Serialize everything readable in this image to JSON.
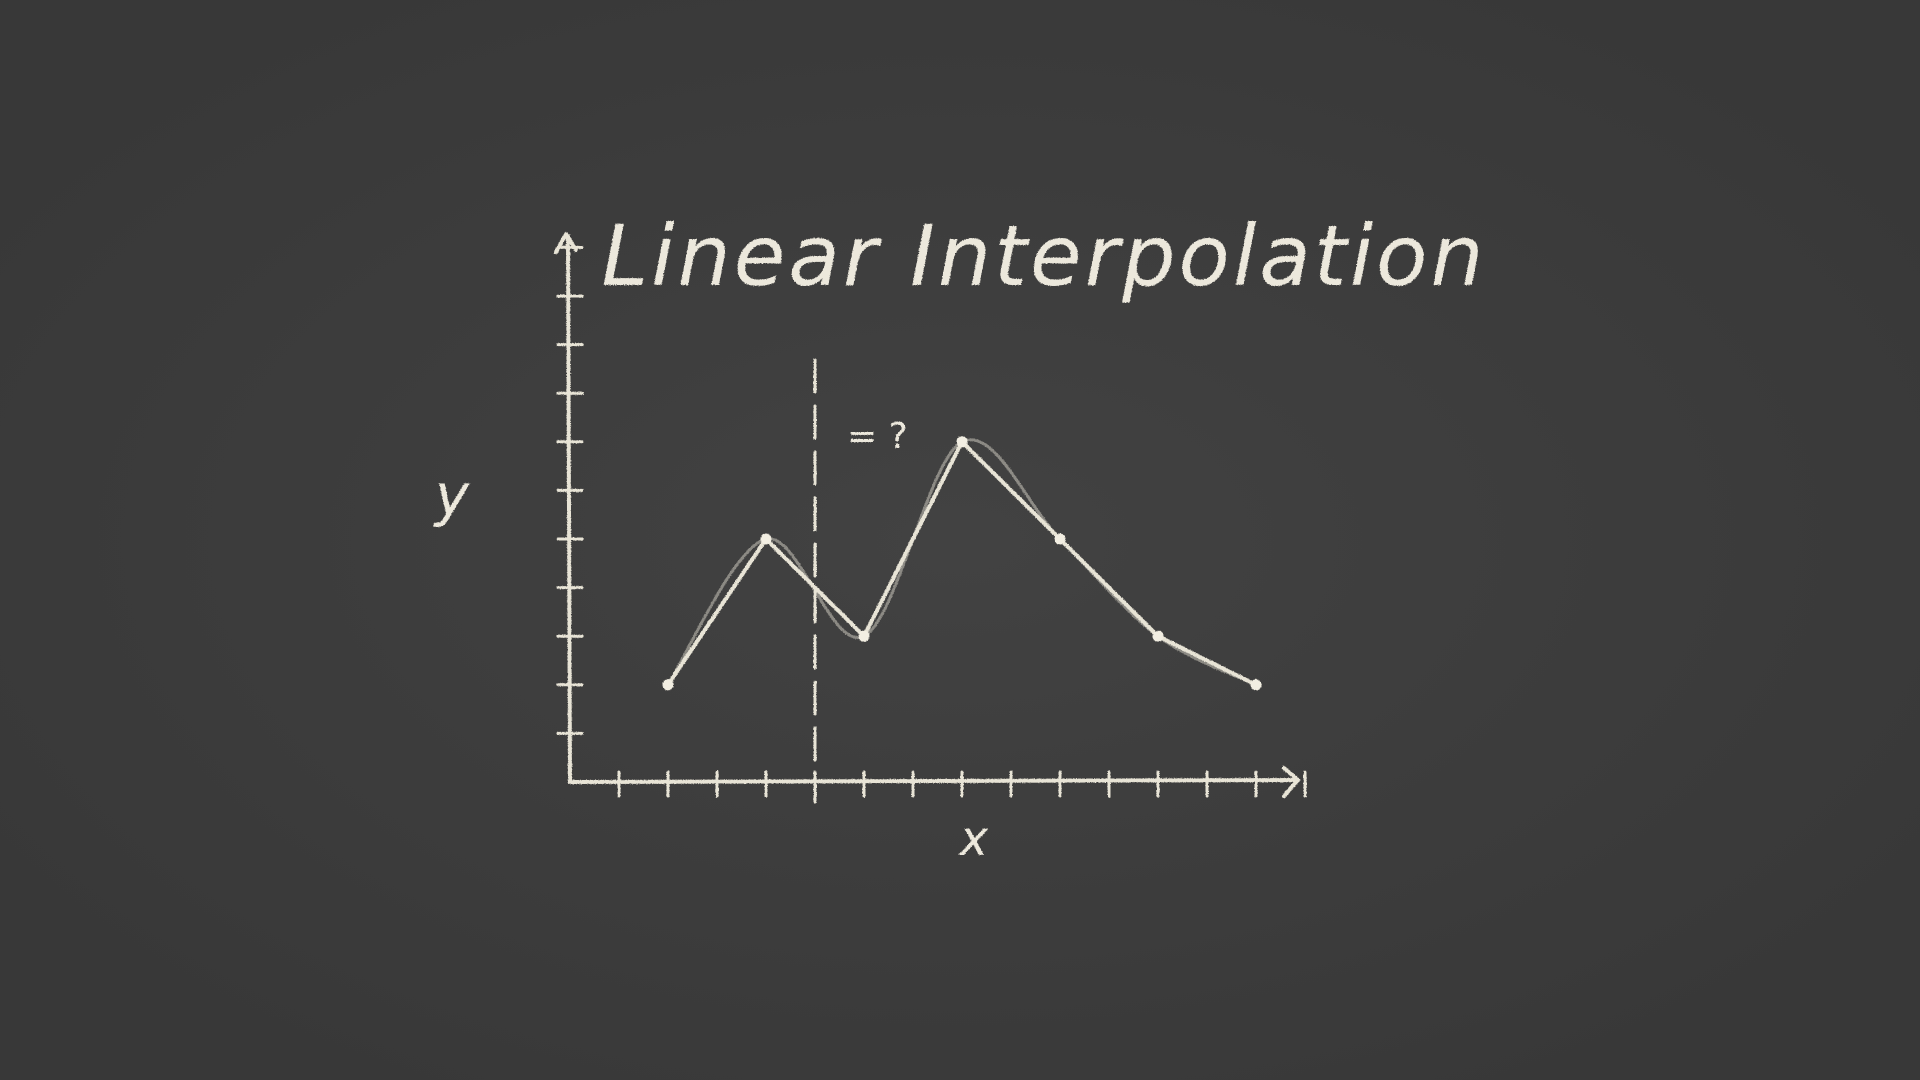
{
  "chart_data": {
    "type": "line",
    "title": "Linear Interpolation",
    "xlabel": "x",
    "ylabel": "y",
    "xlim": [
      0,
      15
    ],
    "ylim": [
      0,
      11
    ],
    "grid": false,
    "points": [
      {
        "x": 2,
        "y": 2
      },
      {
        "x": 4,
        "y": 5
      },
      {
        "x": 6,
        "y": 3
      },
      {
        "x": 8,
        "y": 7
      },
      {
        "x": 10,
        "y": 5
      },
      {
        "x": 12,
        "y": 3
      },
      {
        "x": 14,
        "y": 2
      }
    ],
    "query": {
      "x": 5,
      "label": "= ?"
    },
    "colors": {
      "background": "#3c3c3c",
      "chalk": "#e8e4d6"
    }
  }
}
